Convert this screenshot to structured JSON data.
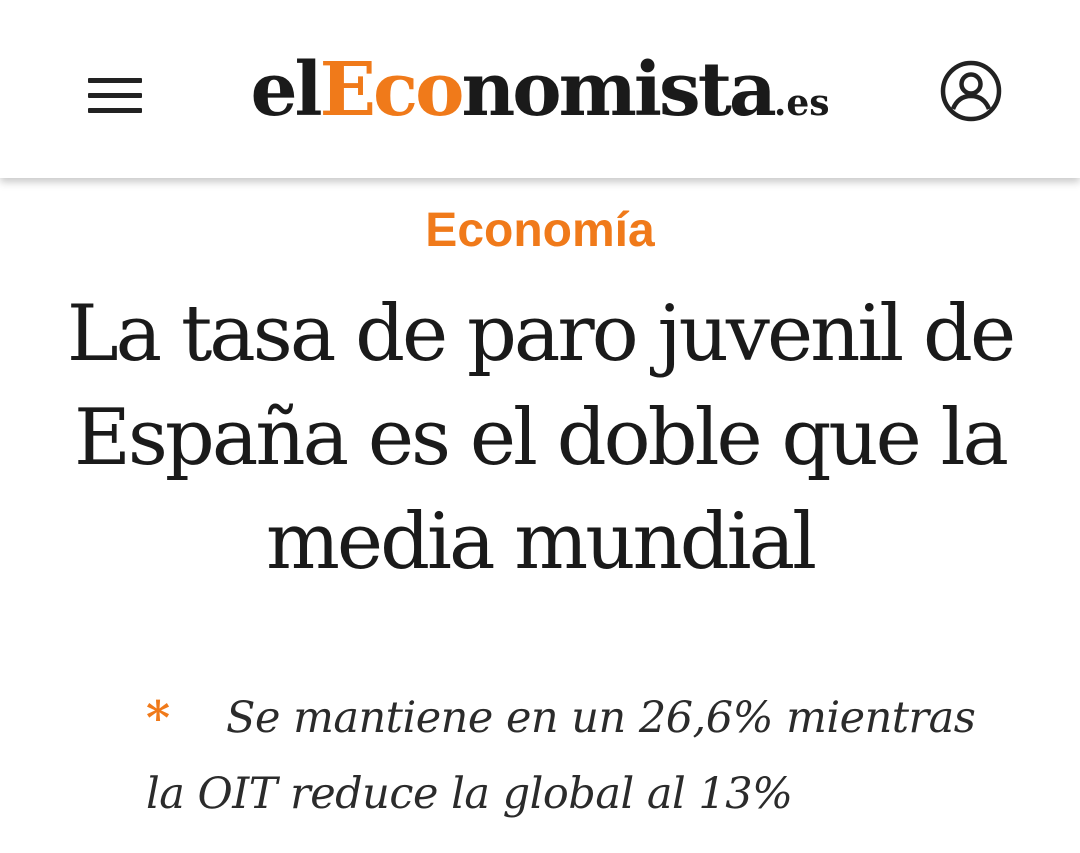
{
  "header": {
    "logo": {
      "part1": "el",
      "part2": "Eco",
      "part3": "nomista",
      "tld": ".es"
    },
    "menu_icon": "hamburger-menu-icon",
    "user_icon": "user-account-icon"
  },
  "article": {
    "category": "Economía",
    "headline": "La tasa de paro juvenil de España es el doble que la media mundial",
    "subheads": [
      "Se mantiene en un 26,6% mientras la OIT reduce la global al 13%"
    ]
  },
  "colors": {
    "accent": "#f07a1a",
    "text": "#1a1a1a"
  }
}
